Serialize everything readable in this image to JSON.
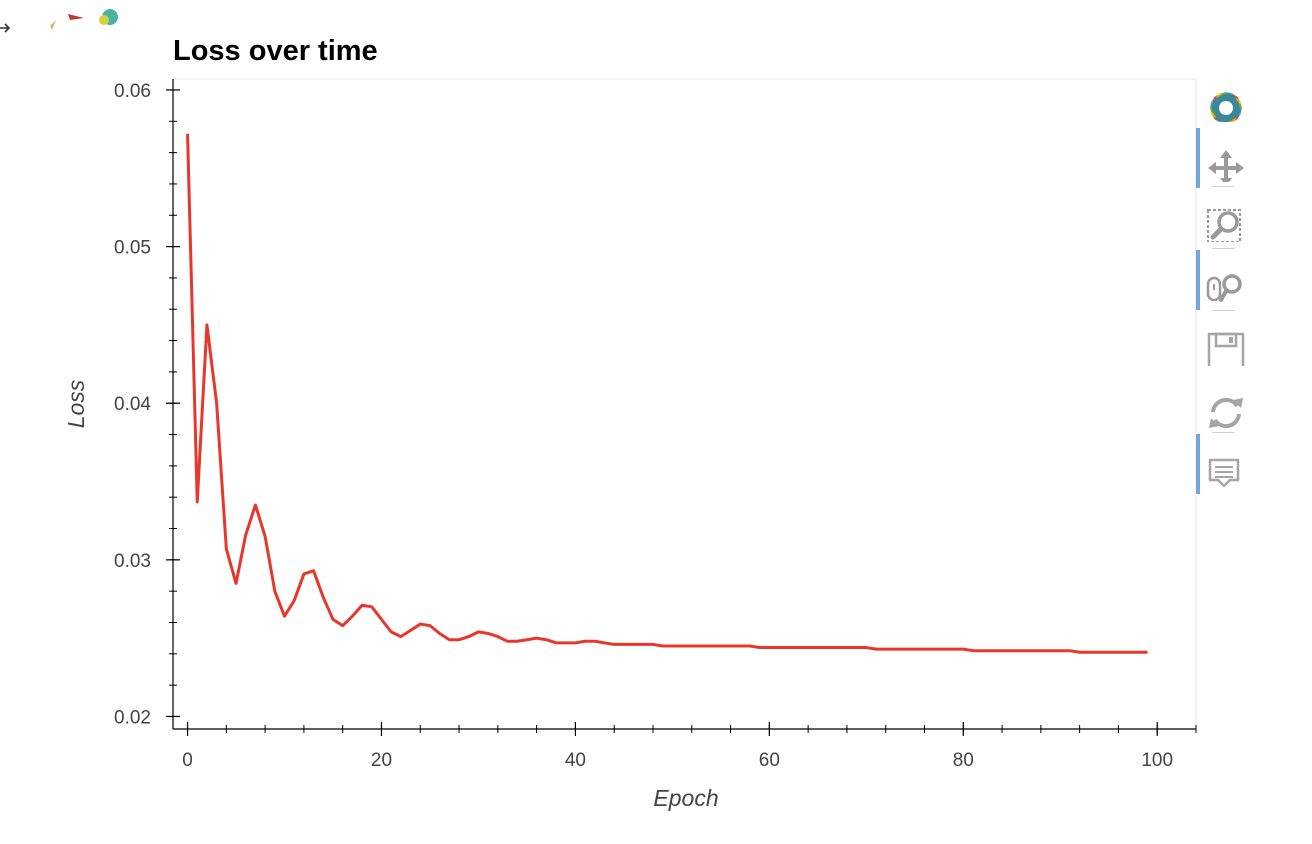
{
  "chart_data": {
    "type": "line",
    "title": "Loss over time",
    "xlabel": "Epoch",
    "ylabel": "Loss",
    "xlim": [
      -1.5,
      104
    ],
    "ylim": [
      0.0192,
      0.0607
    ],
    "x_ticks": [
      0,
      20,
      40,
      60,
      80,
      100
    ],
    "x_tick_labels": [
      "0",
      "20",
      "40",
      "60",
      "80",
      "100"
    ],
    "y_ticks": [
      0.02,
      0.03,
      0.04,
      0.05,
      0.06
    ],
    "y_tick_labels": [
      "0.02",
      "0.03",
      "0.04",
      "0.05",
      "0.06"
    ],
    "grid": false,
    "series": [
      {
        "color": "#e8372a",
        "x": [
          0,
          1,
          2,
          3,
          4,
          5,
          6,
          7,
          8,
          9,
          10,
          11,
          12,
          13,
          14,
          15,
          16,
          17,
          18,
          19,
          20,
          21,
          22,
          23,
          24,
          25,
          26,
          27,
          28,
          29,
          30,
          31,
          32,
          33,
          34,
          35,
          36,
          37,
          38,
          39,
          40,
          41,
          42,
          43,
          44,
          45,
          46,
          47,
          48,
          49,
          50,
          51,
          52,
          53,
          54,
          55,
          56,
          57,
          58,
          59,
          60,
          61,
          62,
          63,
          64,
          65,
          66,
          67,
          68,
          69,
          70,
          71,
          72,
          73,
          74,
          75,
          76,
          77,
          78,
          79,
          80,
          81,
          82,
          83,
          84,
          85,
          86,
          87,
          88,
          89,
          90,
          91,
          92,
          93,
          94,
          95,
          96,
          97,
          98,
          99
        ],
        "y": [
          0.0572,
          0.0337,
          0.045,
          0.04,
          0.0307,
          0.0285,
          0.0316,
          0.0335,
          0.0315,
          0.028,
          0.0264,
          0.0274,
          0.0291,
          0.0293,
          0.0276,
          0.0262,
          0.0258,
          0.0264,
          0.0271,
          0.027,
          0.0262,
          0.0254,
          0.0251,
          0.0255,
          0.0259,
          0.0258,
          0.0253,
          0.0249,
          0.0249,
          0.0251,
          0.0254,
          0.0253,
          0.0251,
          0.0248,
          0.0248,
          0.0249,
          0.025,
          0.0249,
          0.0247,
          0.0247,
          0.0247,
          0.0248,
          0.0248,
          0.0247,
          0.0246,
          0.0246,
          0.0246,
          0.0246,
          0.0246,
          0.0245,
          0.0245,
          0.0245,
          0.0245,
          0.0245,
          0.0245,
          0.0245,
          0.0245,
          0.0245,
          0.0245,
          0.0244,
          0.0244,
          0.0244,
          0.0244,
          0.0244,
          0.0244,
          0.0244,
          0.0244,
          0.0244,
          0.0244,
          0.0244,
          0.0244,
          0.0243,
          0.0243,
          0.0243,
          0.0243,
          0.0243,
          0.0243,
          0.0243,
          0.0243,
          0.0243,
          0.0243,
          0.0242,
          0.0242,
          0.0242,
          0.0242,
          0.0242,
          0.0242,
          0.0242,
          0.0242,
          0.0242,
          0.0242,
          0.0242,
          0.0241,
          0.0241,
          0.0241,
          0.0241,
          0.0241,
          0.0241,
          0.0241,
          0.0241
        ]
      }
    ]
  },
  "toolbar": {
    "tools": [
      {
        "name": "bokeh-logo-icon",
        "active": false
      },
      {
        "name": "pan-icon",
        "active": true
      },
      {
        "name": "box-zoom-icon",
        "active": false
      },
      {
        "name": "wheel-zoom-icon",
        "active": true
      },
      {
        "name": "save-icon",
        "active": false
      },
      {
        "name": "reset-icon",
        "active": false
      },
      {
        "name": "hover-icon",
        "active": true
      }
    ]
  }
}
